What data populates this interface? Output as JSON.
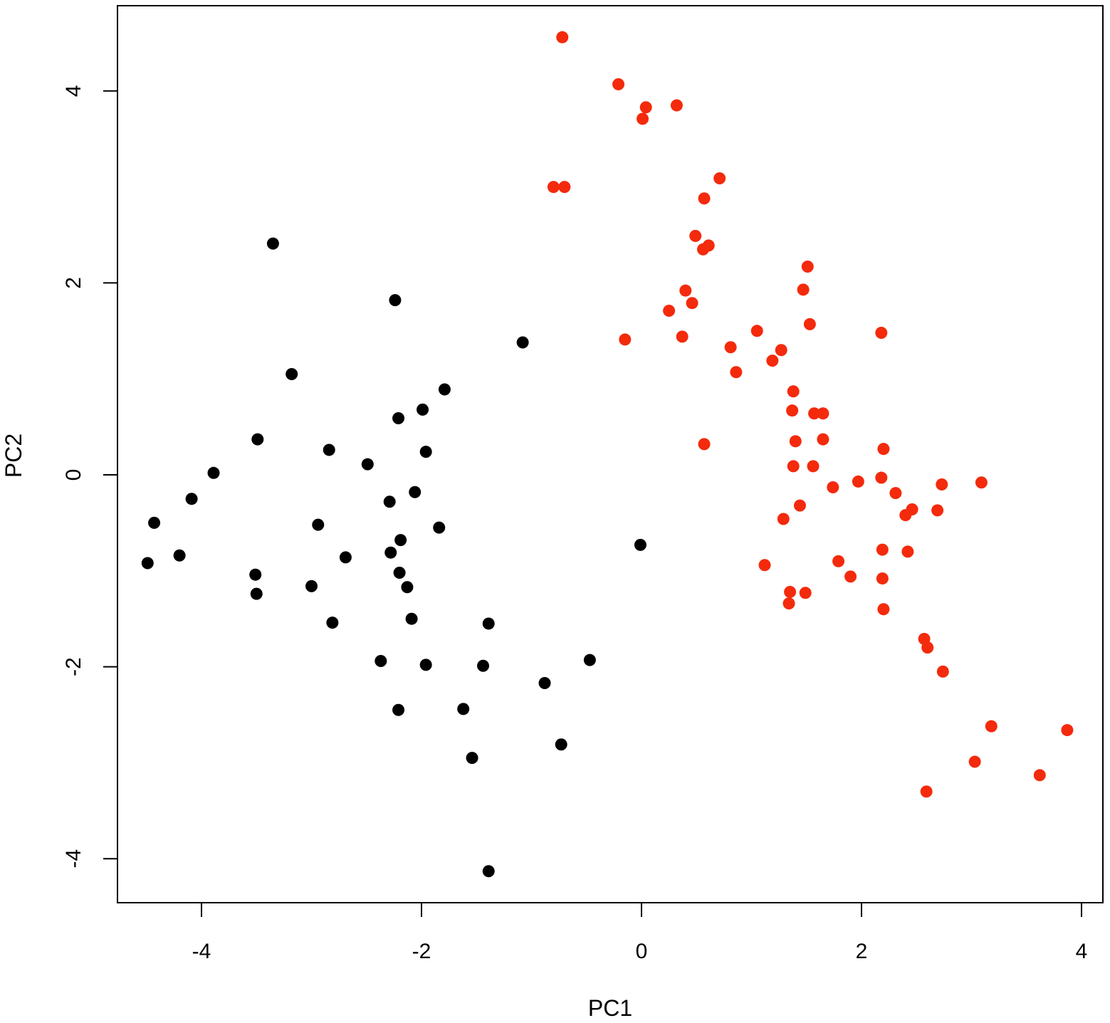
{
  "chart_data": {
    "type": "scatter",
    "title": "",
    "xlabel": "PC1",
    "ylabel": "PC2",
    "xlim": [
      -4.6,
      4.0
    ],
    "ylim": [
      -4.45,
      4.9
    ],
    "grid": false,
    "legend": "none",
    "x_ticks": [
      -4,
      -2,
      0,
      2,
      4
    ],
    "y_ticks": [
      -4,
      -2,
      0,
      2,
      4
    ],
    "x_tick_labels": [
      "-4",
      "-2",
      "0",
      "2",
      "4"
    ],
    "y_tick_labels": [
      "-4",
      "-2",
      "0",
      "2",
      "4"
    ],
    "series": [
      {
        "color": "#000000",
        "points": [
          [
            -3.35,
            2.41
          ],
          [
            -2.24,
            1.82
          ],
          [
            -3.18,
            1.05
          ],
          [
            -1.79,
            0.89
          ],
          [
            -2.21,
            0.59
          ],
          [
            -1.99,
            0.68
          ],
          [
            -3.49,
            0.37
          ],
          [
            -2.84,
            0.26
          ],
          [
            -1.96,
            0.24
          ],
          [
            -2.49,
            0.11
          ],
          [
            -3.89,
            0.02
          ],
          [
            -4.09,
            -0.25
          ],
          [
            -2.06,
            -0.18
          ],
          [
            -4.43,
            -0.5
          ],
          [
            -2.29,
            -0.28
          ],
          [
            -2.94,
            -0.52
          ],
          [
            -1.84,
            -0.55
          ],
          [
            -2.19,
            -0.68
          ],
          [
            -4.2,
            -0.84
          ],
          [
            -4.49,
            -0.92
          ],
          [
            -2.69,
            -0.86
          ],
          [
            -2.28,
            -0.81
          ],
          [
            -3.51,
            -1.04
          ],
          [
            -3.5,
            -1.24
          ],
          [
            -2.2,
            -1.02
          ],
          [
            -3.0,
            -1.16
          ],
          [
            -2.13,
            -1.17
          ],
          [
            -2.09,
            -1.5
          ],
          [
            -2.81,
            -1.54
          ],
          [
            -1.39,
            -1.55
          ],
          [
            -2.37,
            -1.94
          ],
          [
            -1.96,
            -1.98
          ],
          [
            -1.44,
            -1.99
          ],
          [
            -0.88,
            -2.17
          ],
          [
            -0.47,
            -1.93
          ],
          [
            -2.21,
            -2.45
          ],
          [
            -1.62,
            -2.44
          ],
          [
            -1.54,
            -2.95
          ],
          [
            -0.73,
            -2.81
          ],
          [
            -1.39,
            -4.13
          ],
          [
            -1.08,
            1.38
          ],
          [
            -0.01,
            -0.73
          ]
        ]
      },
      {
        "color": "#f42a0c",
        "points": [
          [
            -0.72,
            4.56
          ],
          [
            -0.21,
            4.07
          ],
          [
            0.04,
            3.83
          ],
          [
            0.32,
            3.85
          ],
          [
            0.01,
            3.71
          ],
          [
            -0.8,
            3.0
          ],
          [
            -0.7,
            3.0
          ],
          [
            0.71,
            3.09
          ],
          [
            0.57,
            2.88
          ],
          [
            0.49,
            2.49
          ],
          [
            0.61,
            2.39
          ],
          [
            0.56,
            2.35
          ],
          [
            1.51,
            2.17
          ],
          [
            1.47,
            1.93
          ],
          [
            0.4,
            1.92
          ],
          [
            0.46,
            1.79
          ],
          [
            0.25,
            1.71
          ],
          [
            1.53,
            1.57
          ],
          [
            1.05,
            1.5
          ],
          [
            2.18,
            1.48
          ],
          [
            -0.15,
            1.41
          ],
          [
            0.37,
            1.44
          ],
          [
            0.81,
            1.33
          ],
          [
            1.27,
            1.3
          ],
          [
            1.19,
            1.19
          ],
          [
            0.86,
            1.07
          ],
          [
            1.38,
            0.87
          ],
          [
            1.37,
            0.67
          ],
          [
            1.57,
            0.64
          ],
          [
            1.65,
            0.64
          ],
          [
            1.4,
            0.35
          ],
          [
            1.65,
            0.37
          ],
          [
            0.57,
            0.32
          ],
          [
            2.2,
            0.27
          ],
          [
            1.38,
            0.09
          ],
          [
            1.56,
            0.09
          ],
          [
            2.18,
            -0.03
          ],
          [
            1.97,
            -0.07
          ],
          [
            3.09,
            -0.08
          ],
          [
            2.73,
            -0.1
          ],
          [
            1.74,
            -0.13
          ],
          [
            2.31,
            -0.19
          ],
          [
            1.44,
            -0.32
          ],
          [
            2.46,
            -0.36
          ],
          [
            2.69,
            -0.37
          ],
          [
            2.4,
            -0.42
          ],
          [
            1.29,
            -0.46
          ],
          [
            2.19,
            -0.78
          ],
          [
            2.42,
            -0.8
          ],
          [
            1.79,
            -0.9
          ],
          [
            1.12,
            -0.94
          ],
          [
            1.9,
            -1.06
          ],
          [
            2.19,
            -1.08
          ],
          [
            1.35,
            -1.22
          ],
          [
            1.49,
            -1.23
          ],
          [
            1.34,
            -1.34
          ],
          [
            2.2,
            -1.4
          ],
          [
            2.57,
            -1.71
          ],
          [
            2.6,
            -1.8
          ],
          [
            2.74,
            -2.05
          ],
          [
            3.18,
            -2.62
          ],
          [
            3.87,
            -2.66
          ],
          [
            3.03,
            -2.99
          ],
          [
            3.62,
            -3.13
          ],
          [
            2.59,
            -3.3
          ]
        ]
      }
    ]
  }
}
